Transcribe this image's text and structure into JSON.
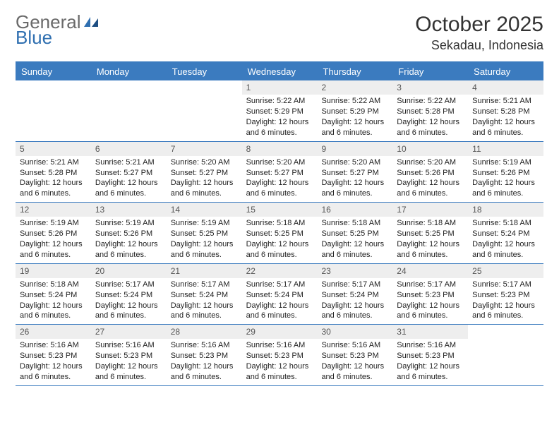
{
  "brand": {
    "word1": "General",
    "word2": "Blue"
  },
  "title": "October 2025",
  "location": "Sekadau, Indonesia",
  "colors": {
    "accent": "#3b7bbf",
    "header_bg": "#3b7bbf",
    "header_text": "#ffffff",
    "daynum_bg": "#eeeeee",
    "daynum_text": "#555555",
    "body_text": "#222222",
    "logo_gray": "#6a6a6a",
    "logo_blue": "#2f6fb0",
    "page_bg": "#ffffff"
  },
  "weekdays": [
    "Sunday",
    "Monday",
    "Tuesday",
    "Wednesday",
    "Thursday",
    "Friday",
    "Saturday"
  ],
  "weeks": [
    [
      {
        "n": "",
        "sr": "",
        "ss": "",
        "dl": "",
        "empty": true
      },
      {
        "n": "",
        "sr": "",
        "ss": "",
        "dl": "",
        "empty": true
      },
      {
        "n": "",
        "sr": "",
        "ss": "",
        "dl": "",
        "empty": true
      },
      {
        "n": "1",
        "sr": "Sunrise: 5:22 AM",
        "ss": "Sunset: 5:29 PM",
        "dl": "Daylight: 12 hours and 6 minutes."
      },
      {
        "n": "2",
        "sr": "Sunrise: 5:22 AM",
        "ss": "Sunset: 5:29 PM",
        "dl": "Daylight: 12 hours and 6 minutes."
      },
      {
        "n": "3",
        "sr": "Sunrise: 5:22 AM",
        "ss": "Sunset: 5:28 PM",
        "dl": "Daylight: 12 hours and 6 minutes."
      },
      {
        "n": "4",
        "sr": "Sunrise: 5:21 AM",
        "ss": "Sunset: 5:28 PM",
        "dl": "Daylight: 12 hours and 6 minutes."
      }
    ],
    [
      {
        "n": "5",
        "sr": "Sunrise: 5:21 AM",
        "ss": "Sunset: 5:28 PM",
        "dl": "Daylight: 12 hours and 6 minutes."
      },
      {
        "n": "6",
        "sr": "Sunrise: 5:21 AM",
        "ss": "Sunset: 5:27 PM",
        "dl": "Daylight: 12 hours and 6 minutes."
      },
      {
        "n": "7",
        "sr": "Sunrise: 5:20 AM",
        "ss": "Sunset: 5:27 PM",
        "dl": "Daylight: 12 hours and 6 minutes."
      },
      {
        "n": "8",
        "sr": "Sunrise: 5:20 AM",
        "ss": "Sunset: 5:27 PM",
        "dl": "Daylight: 12 hours and 6 minutes."
      },
      {
        "n": "9",
        "sr": "Sunrise: 5:20 AM",
        "ss": "Sunset: 5:27 PM",
        "dl": "Daylight: 12 hours and 6 minutes."
      },
      {
        "n": "10",
        "sr": "Sunrise: 5:20 AM",
        "ss": "Sunset: 5:26 PM",
        "dl": "Daylight: 12 hours and 6 minutes."
      },
      {
        "n": "11",
        "sr": "Sunrise: 5:19 AM",
        "ss": "Sunset: 5:26 PM",
        "dl": "Daylight: 12 hours and 6 minutes."
      }
    ],
    [
      {
        "n": "12",
        "sr": "Sunrise: 5:19 AM",
        "ss": "Sunset: 5:26 PM",
        "dl": "Daylight: 12 hours and 6 minutes."
      },
      {
        "n": "13",
        "sr": "Sunrise: 5:19 AM",
        "ss": "Sunset: 5:26 PM",
        "dl": "Daylight: 12 hours and 6 minutes."
      },
      {
        "n": "14",
        "sr": "Sunrise: 5:19 AM",
        "ss": "Sunset: 5:25 PM",
        "dl": "Daylight: 12 hours and 6 minutes."
      },
      {
        "n": "15",
        "sr": "Sunrise: 5:18 AM",
        "ss": "Sunset: 5:25 PM",
        "dl": "Daylight: 12 hours and 6 minutes."
      },
      {
        "n": "16",
        "sr": "Sunrise: 5:18 AM",
        "ss": "Sunset: 5:25 PM",
        "dl": "Daylight: 12 hours and 6 minutes."
      },
      {
        "n": "17",
        "sr": "Sunrise: 5:18 AM",
        "ss": "Sunset: 5:25 PM",
        "dl": "Daylight: 12 hours and 6 minutes."
      },
      {
        "n": "18",
        "sr": "Sunrise: 5:18 AM",
        "ss": "Sunset: 5:24 PM",
        "dl": "Daylight: 12 hours and 6 minutes."
      }
    ],
    [
      {
        "n": "19",
        "sr": "Sunrise: 5:18 AM",
        "ss": "Sunset: 5:24 PM",
        "dl": "Daylight: 12 hours and 6 minutes."
      },
      {
        "n": "20",
        "sr": "Sunrise: 5:17 AM",
        "ss": "Sunset: 5:24 PM",
        "dl": "Daylight: 12 hours and 6 minutes."
      },
      {
        "n": "21",
        "sr": "Sunrise: 5:17 AM",
        "ss": "Sunset: 5:24 PM",
        "dl": "Daylight: 12 hours and 6 minutes."
      },
      {
        "n": "22",
        "sr": "Sunrise: 5:17 AM",
        "ss": "Sunset: 5:24 PM",
        "dl": "Daylight: 12 hours and 6 minutes."
      },
      {
        "n": "23",
        "sr": "Sunrise: 5:17 AM",
        "ss": "Sunset: 5:24 PM",
        "dl": "Daylight: 12 hours and 6 minutes."
      },
      {
        "n": "24",
        "sr": "Sunrise: 5:17 AM",
        "ss": "Sunset: 5:23 PM",
        "dl": "Daylight: 12 hours and 6 minutes."
      },
      {
        "n": "25",
        "sr": "Sunrise: 5:17 AM",
        "ss": "Sunset: 5:23 PM",
        "dl": "Daylight: 12 hours and 6 minutes."
      }
    ],
    [
      {
        "n": "26",
        "sr": "Sunrise: 5:16 AM",
        "ss": "Sunset: 5:23 PM",
        "dl": "Daylight: 12 hours and 6 minutes."
      },
      {
        "n": "27",
        "sr": "Sunrise: 5:16 AM",
        "ss": "Sunset: 5:23 PM",
        "dl": "Daylight: 12 hours and 6 minutes."
      },
      {
        "n": "28",
        "sr": "Sunrise: 5:16 AM",
        "ss": "Sunset: 5:23 PM",
        "dl": "Daylight: 12 hours and 6 minutes."
      },
      {
        "n": "29",
        "sr": "Sunrise: 5:16 AM",
        "ss": "Sunset: 5:23 PM",
        "dl": "Daylight: 12 hours and 6 minutes."
      },
      {
        "n": "30",
        "sr": "Sunrise: 5:16 AM",
        "ss": "Sunset: 5:23 PM",
        "dl": "Daylight: 12 hours and 6 minutes."
      },
      {
        "n": "31",
        "sr": "Sunrise: 5:16 AM",
        "ss": "Sunset: 5:23 PM",
        "dl": "Daylight: 12 hours and 6 minutes."
      },
      {
        "n": "",
        "sr": "",
        "ss": "",
        "dl": "",
        "empty": true
      }
    ]
  ]
}
